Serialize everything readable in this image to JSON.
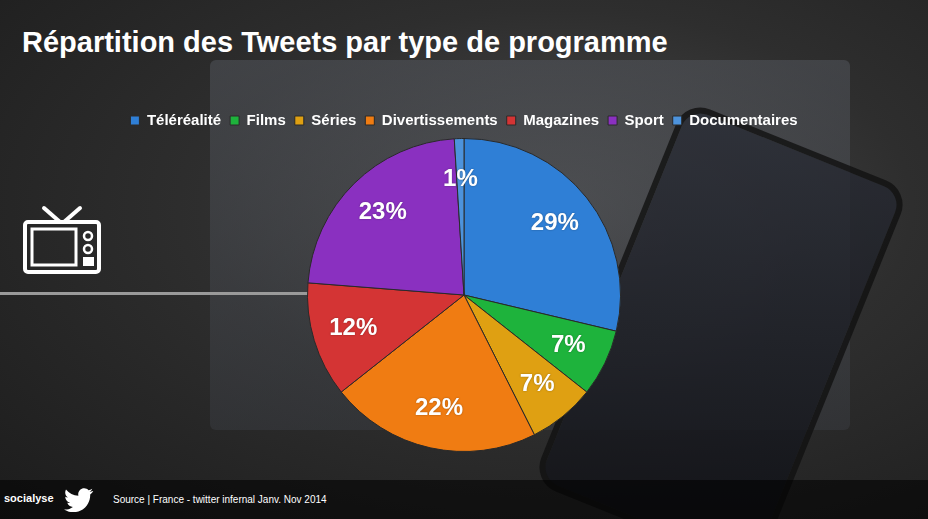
{
  "chart_data": {
    "type": "pie",
    "title": "Répartition des Tweets par type de programme",
    "categories": [
      "Téléréalité",
      "Films",
      "Séries",
      "Divertissements",
      "Magazines",
      "Sport",
      "Documentaires"
    ],
    "values": [
      29,
      7,
      7,
      22,
      12,
      23,
      1
    ],
    "value_labels": [
      "29%",
      "7%",
      "7%",
      "22%",
      "12%",
      "23%",
      "1%"
    ],
    "colors": [
      "#2f7fd6",
      "#1eb33c",
      "#dfa012",
      "#f07c12",
      "#d43434",
      "#8a30c0",
      "#4d93dc"
    ],
    "data_labels": true,
    "legend": "top",
    "source": "Source | France - twitter infernal Janv. Nov 2014",
    "logo": "socialyse"
  }
}
